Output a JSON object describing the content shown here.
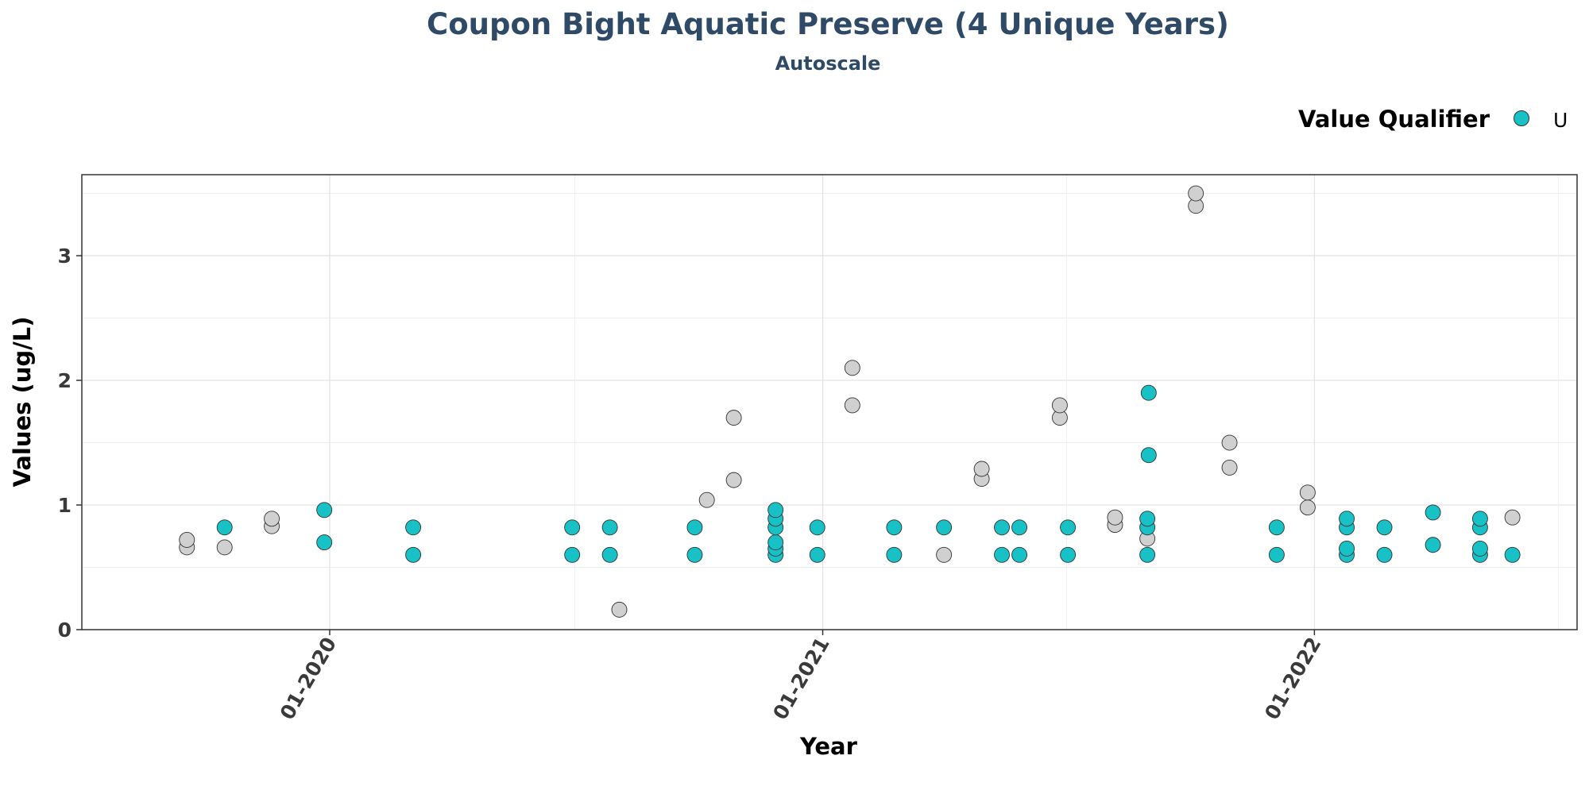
{
  "chart_data": {
    "type": "scatter",
    "title": "Coupon Bight Aquatic Preserve (4 Unique Years)",
    "subtitle": "Autoscale",
    "xlabel": "Year",
    "ylabel": "Values (ug/L)",
    "x_ticks": [
      "01-2020",
      "01-2021",
      "01-2022"
    ],
    "y_ticks": [
      "0",
      "1",
      "2",
      "3"
    ],
    "xlim": [
      "2019-07-01",
      "2022-07-15"
    ],
    "ylim": [
      0,
      3.65
    ],
    "grid": true,
    "legend": {
      "title": "Value Qualifier",
      "position": "top-right",
      "items": [
        {
          "label": "U",
          "color": "#17c1c6"
        }
      ]
    },
    "colors": {
      "U": "#17c1c6",
      "none": "#d0d0d0",
      "stroke": "#333333"
    },
    "points": [
      {
        "x": "2019-09-17",
        "y": 0.66,
        "q": ""
      },
      {
        "x": "2019-09-17",
        "y": 0.72,
        "q": ""
      },
      {
        "x": "2019-10-15",
        "y": 0.66,
        "q": ""
      },
      {
        "x": "2019-10-15",
        "y": 0.82,
        "q": "U"
      },
      {
        "x": "2019-11-19",
        "y": 0.83,
        "q": ""
      },
      {
        "x": "2019-11-19",
        "y": 0.89,
        "q": ""
      },
      {
        "x": "2019-12-28",
        "y": 0.7,
        "q": "U"
      },
      {
        "x": "2019-12-28",
        "y": 0.96,
        "q": "U"
      },
      {
        "x": "2020-03-03",
        "y": 0.6,
        "q": "U"
      },
      {
        "x": "2020-03-03",
        "y": 0.82,
        "q": "U"
      },
      {
        "x": "2020-06-29",
        "y": 0.6,
        "q": "U"
      },
      {
        "x": "2020-06-29",
        "y": 0.82,
        "q": "U"
      },
      {
        "x": "2020-07-27",
        "y": 0.6,
        "q": "U"
      },
      {
        "x": "2020-07-27",
        "y": 0.82,
        "q": "U"
      },
      {
        "x": "2020-08-03",
        "y": 0.16,
        "q": ""
      },
      {
        "x": "2020-09-28",
        "y": 0.6,
        "q": "U"
      },
      {
        "x": "2020-09-28",
        "y": 0.82,
        "q": "U"
      },
      {
        "x": "2020-10-07",
        "y": 1.04,
        "q": ""
      },
      {
        "x": "2020-10-27",
        "y": 1.2,
        "q": ""
      },
      {
        "x": "2020-10-27",
        "y": 1.7,
        "q": ""
      },
      {
        "x": "2020-11-27",
        "y": 0.6,
        "q": "U"
      },
      {
        "x": "2020-11-27",
        "y": 0.65,
        "q": "U"
      },
      {
        "x": "2020-11-27",
        "y": 0.7,
        "q": "U"
      },
      {
        "x": "2020-11-27",
        "y": 0.82,
        "q": "U"
      },
      {
        "x": "2020-11-27",
        "y": 0.89,
        "q": "U"
      },
      {
        "x": "2020-11-27",
        "y": 0.96,
        "q": "U"
      },
      {
        "x": "2020-12-28",
        "y": 0.6,
        "q": "U"
      },
      {
        "x": "2020-12-28",
        "y": 0.82,
        "q": "U"
      },
      {
        "x": "2021-01-23",
        "y": 1.8,
        "q": ""
      },
      {
        "x": "2021-01-23",
        "y": 2.1,
        "q": ""
      },
      {
        "x": "2021-02-23",
        "y": 0.6,
        "q": "U"
      },
      {
        "x": "2021-02-23",
        "y": 0.82,
        "q": "U"
      },
      {
        "x": "2021-04-01",
        "y": 0.6,
        "q": ""
      },
      {
        "x": "2021-04-01",
        "y": 0.82,
        "q": "U"
      },
      {
        "x": "2021-04-29",
        "y": 1.21,
        "q": ""
      },
      {
        "x": "2021-04-29",
        "y": 1.29,
        "q": ""
      },
      {
        "x": "2021-05-14",
        "y": 0.6,
        "q": "U"
      },
      {
        "x": "2021-05-14",
        "y": 0.82,
        "q": "U"
      },
      {
        "x": "2021-05-27",
        "y": 0.6,
        "q": "U"
      },
      {
        "x": "2021-05-27",
        "y": 0.82,
        "q": "U"
      },
      {
        "x": "2021-06-26",
        "y": 1.7,
        "q": ""
      },
      {
        "x": "2021-06-26",
        "y": 1.8,
        "q": ""
      },
      {
        "x": "2021-07-02",
        "y": 0.6,
        "q": "U"
      },
      {
        "x": "2021-07-02",
        "y": 0.82,
        "q": "U"
      },
      {
        "x": "2021-08-06",
        "y": 0.84,
        "q": ""
      },
      {
        "x": "2021-08-06",
        "y": 0.9,
        "q": ""
      },
      {
        "x": "2021-08-30",
        "y": 0.6,
        "q": "U"
      },
      {
        "x": "2021-08-30",
        "y": 0.73,
        "q": ""
      },
      {
        "x": "2021-08-30",
        "y": 0.82,
        "q": "U"
      },
      {
        "x": "2021-08-30",
        "y": 0.89,
        "q": "U"
      },
      {
        "x": "2021-08-31",
        "y": 1.4,
        "q": "U"
      },
      {
        "x": "2021-08-31",
        "y": 1.9,
        "q": "U"
      },
      {
        "x": "2021-10-05",
        "y": 3.4,
        "q": ""
      },
      {
        "x": "2021-10-05",
        "y": 3.5,
        "q": ""
      },
      {
        "x": "2021-10-30",
        "y": 1.3,
        "q": ""
      },
      {
        "x": "2021-10-30",
        "y": 1.5,
        "q": ""
      },
      {
        "x": "2021-12-04",
        "y": 0.6,
        "q": "U"
      },
      {
        "x": "2021-12-04",
        "y": 0.82,
        "q": "U"
      },
      {
        "x": "2021-12-27",
        "y": 0.98,
        "q": ""
      },
      {
        "x": "2021-12-27",
        "y": 1.1,
        "q": ""
      },
      {
        "x": "2022-01-25",
        "y": 0.6,
        "q": "U"
      },
      {
        "x": "2022-01-25",
        "y": 0.65,
        "q": "U"
      },
      {
        "x": "2022-01-25",
        "y": 0.82,
        "q": "U"
      },
      {
        "x": "2022-01-25",
        "y": 0.89,
        "q": "U"
      },
      {
        "x": "2022-02-22",
        "y": 0.6,
        "q": "U"
      },
      {
        "x": "2022-02-22",
        "y": 0.82,
        "q": "U"
      },
      {
        "x": "2022-03-30",
        "y": 0.68,
        "q": "U"
      },
      {
        "x": "2022-03-30",
        "y": 0.94,
        "q": "U"
      },
      {
        "x": "2022-05-04",
        "y": 0.6,
        "q": "U"
      },
      {
        "x": "2022-05-04",
        "y": 0.65,
        "q": "U"
      },
      {
        "x": "2022-05-04",
        "y": 0.82,
        "q": "U"
      },
      {
        "x": "2022-05-04",
        "y": 0.89,
        "q": "U"
      },
      {
        "x": "2022-05-28",
        "y": 0.6,
        "q": "U"
      },
      {
        "x": "2022-05-28",
        "y": 0.9,
        "q": ""
      }
    ]
  }
}
